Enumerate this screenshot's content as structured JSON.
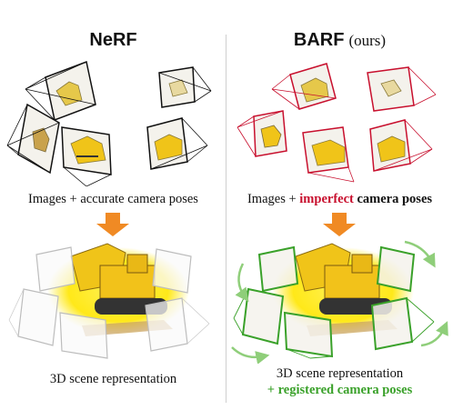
{
  "nerf": {
    "title": "NeRF",
    "caption_top": "Images + accurate camera poses",
    "caption_bottom": "3D scene representation"
  },
  "barf": {
    "title": "BARF",
    "title_suffix": "(ours)",
    "caption_top_plain": "Images +",
    "caption_top_red": "imperfect",
    "caption_top_bold": "camera poses",
    "caption_bottom_line1": "3D scene representation",
    "caption_bottom_plus": "+",
    "caption_bottom_green": "registered camera poses"
  },
  "colors": {
    "accurate_camera": "#111111",
    "imperfect_camera": "#c8102e",
    "registered_camera": "#3aa12a",
    "arrow": "#f08a24",
    "glow": "#ffe600"
  }
}
